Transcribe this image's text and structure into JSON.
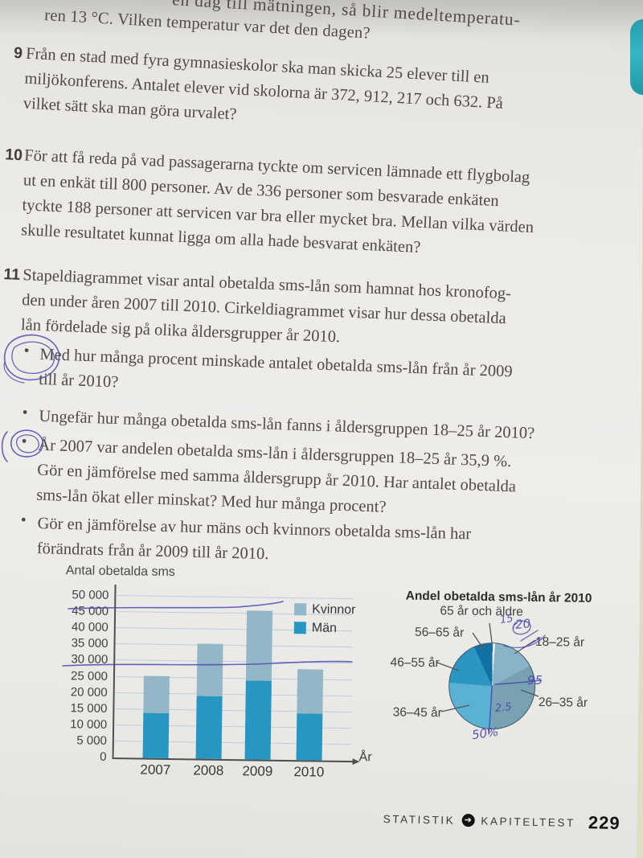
{
  "ui": {
    "bullet": "•"
  },
  "header_fragment": {
    "line1": "en dag till mätningen, så blir medeltemperatu-",
    "line2": "ren 13 °C. Vilken temperatur var det den dagen?"
  },
  "problems": [
    {
      "number": "9",
      "lines": [
        "Från en stad med fyra gymnasieskolor ska man skicka 25 elever till en",
        "miljökonferens. Antalet elever vid skolorna är 372, 912, 217 och 632. På",
        "vilket sätt ska man göra urvalet?"
      ]
    },
    {
      "number": "10",
      "lines": [
        "För att få reda på vad passagerarna tyckte om servicen lämnade ett flygbolag",
        "ut en enkät till 800 personer. Av de 336 personer som besvarade enkäten",
        "tyckte 188 personer att servicen var bra eller mycket bra. Mellan vilka värden",
        "skulle resultatet kunnat ligga om alla hade besvarat enkäten?"
      ]
    },
    {
      "number": "11",
      "lines": [
        "Stapeldiagrammet visar antal obetalda sms-lån som hamnat hos kronofog-",
        "den under åren 2007 till 2010. Cirkeldiagrammet visar hur dessa obetalda",
        "lån fördelade sig på olika åldersgrupper år 2010."
      ]
    }
  ],
  "bullets": [
    {
      "lines": [
        "Med hur många procent minskade antalet obetalda sms-lån från år 2009",
        "till år 2010?"
      ]
    },
    {
      "lines": [
        "Ungefär hur många obetalda sms-lån fanns i åldersgruppen 18–25 år 2010?"
      ]
    },
    {
      "lines": [
        "År 2007 var andelen obetalda sms-lån i åldersgruppen 18–25 år 35,9 %.",
        "Gör en jämförelse med samma åldersgrupp år 2010. Har antalet obetalda",
        "sms-lån ökat eller minskat? Med hur många procent?"
      ]
    },
    {
      "lines": [
        "Gör en jämförelse av hur mäns och kvinnors obetalda sms-lån har",
        "förändrats från år 2009 till år 2010."
      ]
    }
  ],
  "chart_data": [
    {
      "type": "bar",
      "stacked": true,
      "title": "Antal obetalda sms",
      "xlabel": "År",
      "ylabel": "",
      "categories": [
        "2007",
        "2008",
        "2009",
        "2010"
      ],
      "series": [
        {
          "name": "Män",
          "color": "#2696c3",
          "values": [
            14000,
            19500,
            24500,
            14500
          ]
        },
        {
          "name": "Kvinnor",
          "color": "#93b7c6",
          "values": [
            11500,
            16200,
            21500,
            13500
          ]
        }
      ],
      "totals": [
        25500,
        35700,
        46000,
        28000
      ],
      "ylim": [
        0,
        50000
      ],
      "ytick_step": 5000,
      "grid": true,
      "legend_position": "top-right"
    },
    {
      "type": "pie",
      "title": "Andel obetalda sms-lån år 2010",
      "start_angle_deg": 0,
      "slices": [
        {
          "label": "65 år och äldre",
          "value": 1,
          "color": "#e9eae7"
        },
        {
          "label": "18–25 år",
          "value": 16,
          "color": "#88b4c7"
        },
        {
          "label": "26–35 år",
          "value": 33,
          "color": "#78a1b2"
        },
        {
          "label": "36–45 år",
          "value": 26,
          "color": "#5bb1d3"
        },
        {
          "label": "46–55 år",
          "value": 17,
          "color": "#2a96c1"
        },
        {
          "label": "56–65 år",
          "value": 7,
          "color": "#1173a5"
        }
      ]
    }
  ],
  "handwriting": {
    "ink_color": "#4a4ab0",
    "notes": [
      {
        "text": "15"
      },
      {
        "text": "20"
      },
      {
        "text": "95"
      },
      {
        "text": "2.5"
      },
      {
        "text": "50%"
      }
    ]
  },
  "footer": {
    "section": "STATISTIK",
    "icon": "➔",
    "subsection": "KAPITELTEST",
    "page": "229"
  }
}
